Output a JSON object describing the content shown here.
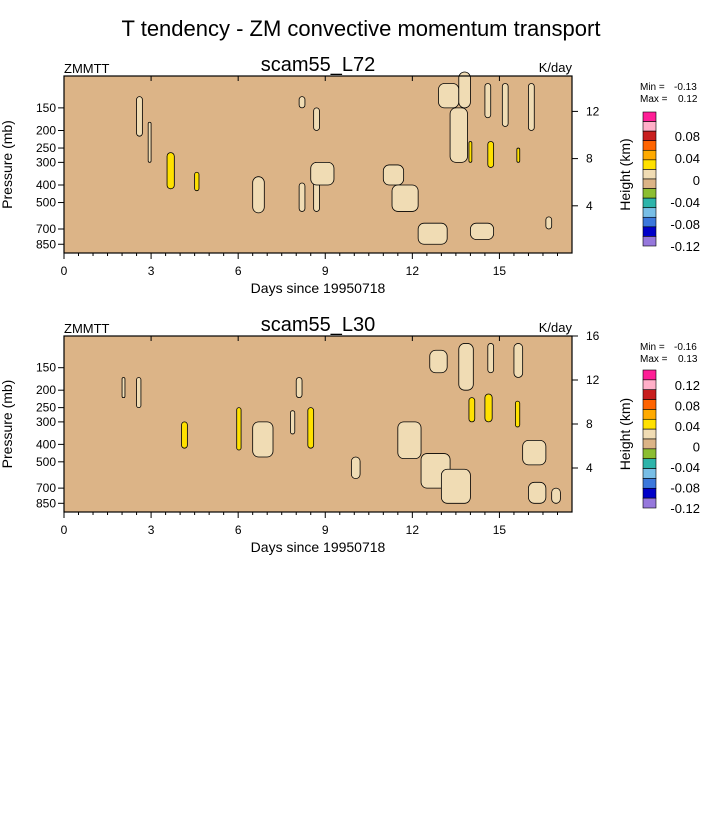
{
  "figure": {
    "title": "T tendency - ZM convective momentum transport"
  },
  "chart_data": [
    {
      "type": "heatmap",
      "variable": "ZMMTT",
      "title": "scam55_L72",
      "units": "K/day",
      "xlabel": "Days since 19950718",
      "ylabel": "Pressure (mb)",
      "ylabel_right": "Height (km)",
      "xlim": [
        0,
        17.5
      ],
      "xticks": [
        0,
        3,
        6,
        9,
        12,
        15
      ],
      "yticks": [
        150,
        200,
        250,
        300,
        400,
        500,
        700,
        850
      ],
      "yticks_right": [
        4,
        8,
        12
      ],
      "stats": {
        "min_label": "Min =",
        "min": "-0.13",
        "max_label": "Max =",
        "max": "0.12"
      },
      "colorbar": {
        "colors": [
          "#ff1e96",
          "#ffafc8",
          "#c81e1e",
          "#ff6400",
          "#ffaa00",
          "#ffe100",
          "#f0dcb4",
          "#dcb487",
          "#8cbe32",
          "#2db4aa",
          "#78bee6",
          "#3c78dc",
          "#0000c8",
          "#9678dc"
        ],
        "labels": [
          "0.08",
          "0.04",
          "0",
          "-0.04",
          "-0.08",
          "-0.12"
        ]
      },
      "cells": [
        {
          "x0": 2.5,
          "x1": 2.7,
          "p_top": 130,
          "p_bot": 215,
          "v": 0.005
        },
        {
          "x0": 2.9,
          "x1": 3.0,
          "p_top": 180,
          "p_bot": 300,
          "v": 0.005
        },
        {
          "x0": 3.55,
          "x1": 3.8,
          "p_top": 265,
          "p_bot": 420,
          "v": 0.04
        },
        {
          "x0": 4.5,
          "x1": 4.65,
          "p_top": 340,
          "p_bot": 430,
          "v": 0.04
        },
        {
          "x0": 6.5,
          "x1": 6.9,
          "p_top": 360,
          "p_bot": 570,
          "v": 0.005
        },
        {
          "x0": 8.1,
          "x1": 8.3,
          "p_top": 130,
          "p_bot": 150,
          "v": 0.005
        },
        {
          "x0": 8.6,
          "x1": 8.8,
          "p_top": 150,
          "p_bot": 200,
          "v": 0.005
        },
        {
          "x0": 8.6,
          "x1": 8.8,
          "p_top": 300,
          "p_bot": 560,
          "v": 0.005
        },
        {
          "x0": 8.1,
          "x1": 8.3,
          "p_top": 390,
          "p_bot": 560,
          "v": 0.005
        },
        {
          "x0": 8.5,
          "x1": 9.3,
          "p_top": 300,
          "p_bot": 400,
          "v": 0.005
        },
        {
          "x0": 11.0,
          "x1": 11.7,
          "p_top": 310,
          "p_bot": 400,
          "v": 0.005
        },
        {
          "x0": 11.3,
          "x1": 12.2,
          "p_top": 400,
          "p_bot": 560,
          "v": 0.005
        },
        {
          "x0": 12.2,
          "x1": 13.2,
          "p_top": 650,
          "p_bot": 850,
          "v": 0.005
        },
        {
          "x0": 12.9,
          "x1": 13.6,
          "p_top": 110,
          "p_bot": 150,
          "v": 0.005
        },
        {
          "x0": 13.3,
          "x1": 13.9,
          "p_top": 150,
          "p_bot": 300,
          "v": 0.005
        },
        {
          "x0": 13.6,
          "x1": 14.0,
          "p_top": 95,
          "p_bot": 150,
          "v": 0.005
        },
        {
          "x0": 13.95,
          "x1": 14.05,
          "p_top": 230,
          "p_bot": 300,
          "v": 0.04
        },
        {
          "x0": 14.6,
          "x1": 14.8,
          "p_top": 230,
          "p_bot": 320,
          "v": 0.04
        },
        {
          "x0": 14.5,
          "x1": 14.7,
          "p_top": 110,
          "p_bot": 170,
          "v": 0.005
        },
        {
          "x0": 15.1,
          "x1": 15.3,
          "p_top": 110,
          "p_bot": 190,
          "v": 0.005
        },
        {
          "x0": 15.6,
          "x1": 15.7,
          "p_top": 250,
          "p_bot": 300,
          "v": 0.04
        },
        {
          "x0": 16.0,
          "x1": 16.2,
          "p_top": 110,
          "p_bot": 200,
          "v": 0.005
        },
        {
          "x0": 14.0,
          "x1": 14.8,
          "p_top": 650,
          "p_bot": 800,
          "v": 0.005
        },
        {
          "x0": 16.6,
          "x1": 16.8,
          "p_top": 600,
          "p_bot": 700,
          "v": 0.005
        }
      ]
    },
    {
      "type": "heatmap",
      "variable": "ZMMTT",
      "title": "scam55_L30",
      "units": "K/day",
      "xlabel": "Days since 19950718",
      "ylabel": "Pressure (mb)",
      "ylabel_right": "Height (km)",
      "xlim": [
        0,
        17.5
      ],
      "xticks": [
        0,
        3,
        6,
        9,
        12,
        15
      ],
      "yticks": [
        150,
        200,
        250,
        300,
        400,
        500,
        700,
        850
      ],
      "yticks_right": [
        4,
        8,
        12,
        16
      ],
      "stats": {
        "min_label": "Min =",
        "min": "-0.16",
        "max_label": "Max =",
        "max": "0.13"
      },
      "colorbar": {
        "colors": [
          "#ff1e96",
          "#ffafc8",
          "#c81e1e",
          "#ff6400",
          "#ffaa00",
          "#ffe100",
          "#f0dcb4",
          "#dcb487",
          "#8cbe32",
          "#2db4aa",
          "#78bee6",
          "#3c78dc",
          "#0000c8",
          "#9678dc"
        ],
        "labels": [
          "0.12",
          "0.08",
          "0.04",
          "0",
          "-0.04",
          "-0.08",
          "-0.12"
        ]
      },
      "cells": [
        {
          "x0": 2.0,
          "x1": 2.1,
          "p_top": 170,
          "p_bot": 220,
          "v": 0.005
        },
        {
          "x0": 2.5,
          "x1": 2.65,
          "p_top": 170,
          "p_bot": 250,
          "v": 0.005
        },
        {
          "x0": 4.05,
          "x1": 4.25,
          "p_top": 300,
          "p_bot": 420,
          "v": 0.04
        },
        {
          "x0": 5.95,
          "x1": 6.1,
          "p_top": 250,
          "p_bot": 430,
          "v": 0.04
        },
        {
          "x0": 6.5,
          "x1": 7.2,
          "p_top": 300,
          "p_bot": 470,
          "v": 0.005
        },
        {
          "x0": 7.8,
          "x1": 7.95,
          "p_top": 260,
          "p_bot": 350,
          "v": 0.005
        },
        {
          "x0": 8.4,
          "x1": 8.6,
          "p_top": 250,
          "p_bot": 420,
          "v": 0.04
        },
        {
          "x0": 8.0,
          "x1": 8.2,
          "p_top": 170,
          "p_bot": 220,
          "v": 0.005
        },
        {
          "x0": 9.9,
          "x1": 10.2,
          "p_top": 470,
          "p_bot": 620,
          "v": 0.005
        },
        {
          "x0": 11.5,
          "x1": 12.3,
          "p_top": 300,
          "p_bot": 480,
          "v": 0.005
        },
        {
          "x0": 12.3,
          "x1": 13.3,
          "p_top": 450,
          "p_bot": 700,
          "v": 0.005
        },
        {
          "x0": 13.0,
          "x1": 14.0,
          "p_top": 550,
          "p_bot": 850,
          "v": 0.005
        },
        {
          "x0": 12.6,
          "x1": 13.2,
          "p_top": 120,
          "p_bot": 160,
          "v": 0.005
        },
        {
          "x0": 13.6,
          "x1": 14.1,
          "p_top": 110,
          "p_bot": 200,
          "v": 0.005
        },
        {
          "x0": 13.95,
          "x1": 14.15,
          "p_top": 220,
          "p_bot": 300,
          "v": 0.04
        },
        {
          "x0": 14.5,
          "x1": 14.75,
          "p_top": 210,
          "p_bot": 300,
          "v": 0.04
        },
        {
          "x0": 14.6,
          "x1": 14.8,
          "p_top": 110,
          "p_bot": 160,
          "v": 0.005
        },
        {
          "x0": 15.55,
          "x1": 15.7,
          "p_top": 230,
          "p_bot": 320,
          "v": 0.04
        },
        {
          "x0": 15.5,
          "x1": 15.8,
          "p_top": 110,
          "p_bot": 170,
          "v": 0.005
        },
        {
          "x0": 15.8,
          "x1": 16.6,
          "p_top": 380,
          "p_bot": 520,
          "v": 0.005
        },
        {
          "x0": 16.0,
          "x1": 16.6,
          "p_top": 650,
          "p_bot": 850,
          "v": 0.005
        },
        {
          "x0": 16.8,
          "x1": 17.1,
          "p_top": 700,
          "p_bot": 850,
          "v": 0.005
        }
      ]
    }
  ]
}
